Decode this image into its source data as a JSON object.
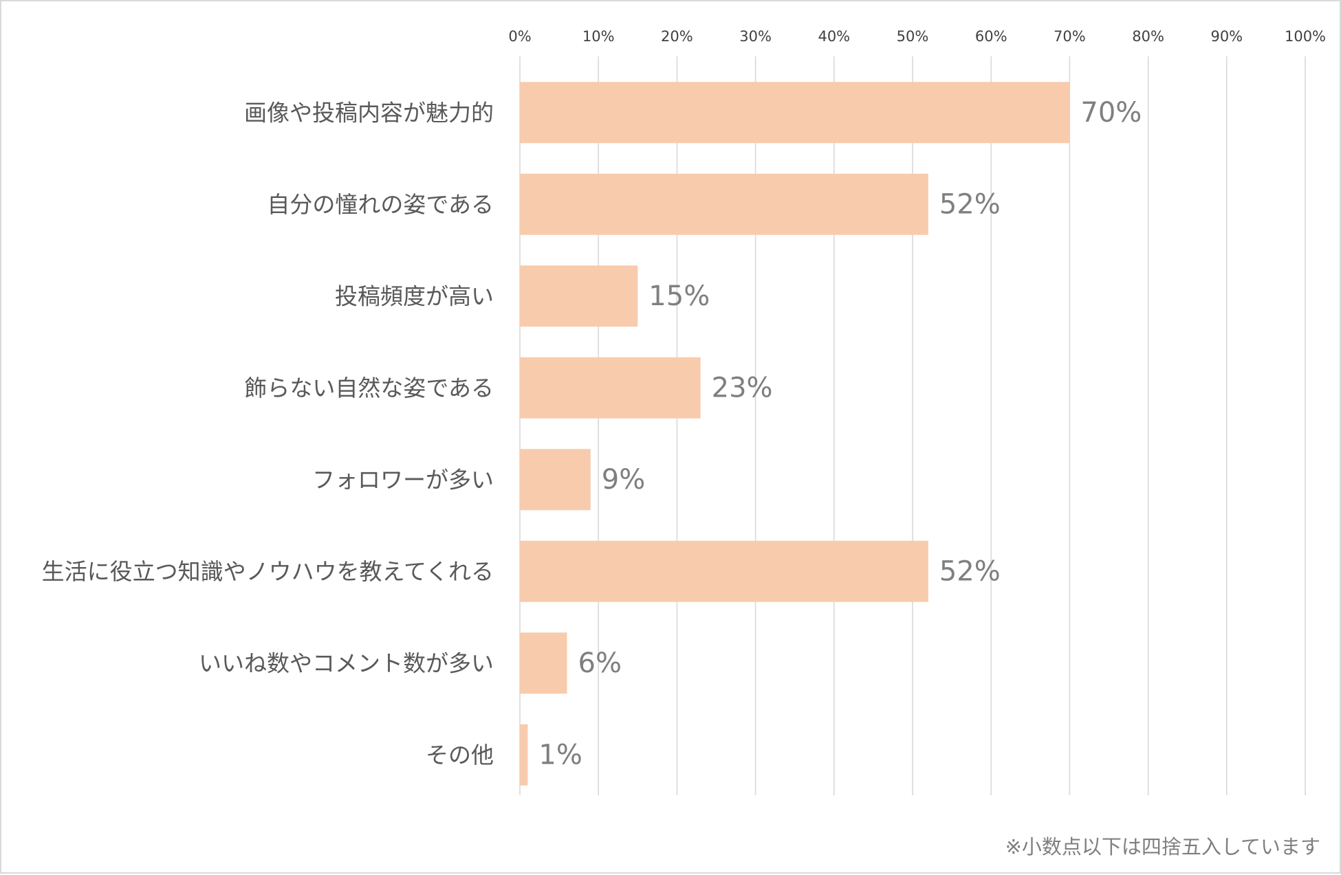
{
  "chart_data": {
    "type": "bar",
    "orientation": "horizontal",
    "categories": [
      "画像や投稿内容が魅力的",
      "自分の憧れの姿である",
      "投稿頻度が高い",
      "飾らない自然な姿である",
      "フォロワーが多い",
      "生活に役立つ知識やノウハウを教えてくれる",
      "いいね数やコメント数が多い",
      "その他"
    ],
    "values": [
      70,
      52,
      15,
      23,
      9,
      52,
      6,
      1
    ],
    "data_labels": [
      "70%",
      "52%",
      "15%",
      "23%",
      "9%",
      "52%",
      "6%",
      "1%"
    ],
    "xlim": [
      0,
      100
    ],
    "x_ticks": [
      0,
      10,
      20,
      30,
      40,
      50,
      60,
      70,
      80,
      90,
      100
    ],
    "x_tick_labels": [
      "0%",
      "10%",
      "20%",
      "30%",
      "40%",
      "50%",
      "60%",
      "70%",
      "80%",
      "90%",
      "100%"
    ],
    "x_axis_position": "top",
    "grid": true,
    "title": "",
    "xlabel": "",
    "ylabel": "",
    "bar_color": "#F8CBAD",
    "gridline_color": "#D9D9D9",
    "footnote": "※小数点以下は四捨五入しています"
  }
}
